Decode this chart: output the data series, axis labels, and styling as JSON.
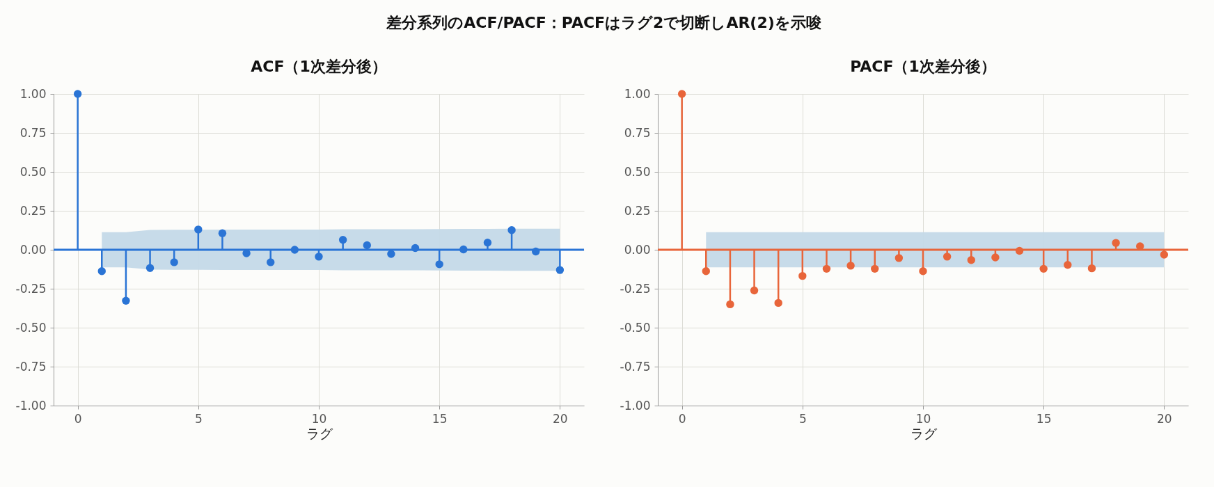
{
  "chart_data": [
    {
      "type": "lollipop",
      "title": "ACF（1次差分後）",
      "xlabel": "ラグ",
      "annotations": [
        "差分系列のACF/PACF：PACFはラグ2で切断しAR(2)を示唆"
      ],
      "x": [
        0,
        1,
        2,
        3,
        4,
        5,
        6,
        7,
        8,
        9,
        10,
        11,
        12,
        13,
        14,
        15,
        16,
        17,
        18,
        19,
        20
      ],
      "series": [
        {
          "color": "#2a74d5",
          "values": [
            1,
            -0.137,
            -0.327,
            -0.117,
            -0.08,
            0.13,
            0.106,
            -0.022,
            -0.08,
            0,
            -0.044,
            0.064,
            0.029,
            -0.027,
            0.011,
            -0.093,
            0.002,
            0.046,
            0.126,
            -0.011,
            -0.13
          ],
          "lower": [
            null,
            -0.113,
            -0.113,
            -0.127,
            -0.128,
            -0.128,
            -0.13,
            -0.13,
            -0.13,
            -0.13,
            -0.13,
            -0.132,
            -0.132,
            -0.132,
            -0.132,
            -0.133,
            -0.134,
            -0.134,
            -0.135,
            -0.135,
            -0.135
          ],
          "upper": [
            null,
            0.113,
            0.113,
            0.127,
            0.128,
            0.128,
            0.13,
            0.13,
            0.13,
            0.13,
            0.13,
            0.132,
            0.132,
            0.132,
            0.132,
            0.133,
            0.134,
            0.134,
            0.135,
            0.135,
            0.135
          ]
        }
      ],
      "xlim": [
        -1,
        21
      ],
      "xticks": [
        0,
        5,
        10,
        15,
        20
      ],
      "ylim": [
        -1,
        1
      ],
      "yticks": [
        {
          "value": -1,
          "label": "-1.00"
        },
        -0.75,
        {
          "value": -0.5,
          "label": "-0.50"
        },
        -0.25,
        {
          "value": 0,
          "label": "0.00"
        },
        0.25,
        {
          "value": 0.5,
          "label": "0.50"
        },
        0.75,
        {
          "value": 1,
          "label": "1.00"
        }
      ],
      "ref_lines": [
        {
          "axis": "y",
          "value": 0,
          "color": "#2a74d5"
        }
      ],
      "grid": true,
      "marker": "circle"
    },
    {
      "type": "lollipop",
      "title": "PACF（1次差分後）",
      "xlabel": "ラグ",
      "x": [
        0,
        1,
        2,
        3,
        4,
        5,
        6,
        7,
        8,
        9,
        10,
        11,
        12,
        13,
        14,
        15,
        16,
        17,
        18,
        19,
        20
      ],
      "series": [
        {
          "color": "#e8653a",
          "values": [
            1,
            -0.137,
            -0.35,
            -0.261,
            -0.341,
            -0.168,
            -0.122,
            -0.102,
            -0.122,
            -0.053,
            -0.137,
            -0.044,
            -0.066,
            -0.049,
            -0.007,
            -0.122,
            -0.097,
            -0.119,
            0.044,
            0.022,
            -0.031
          ],
          "lower": [
            null,
            -0.113,
            -0.113,
            -0.113,
            -0.113,
            -0.113,
            -0.113,
            -0.113,
            -0.113,
            -0.113,
            -0.113,
            -0.113,
            -0.113,
            -0.113,
            -0.113,
            -0.113,
            -0.113,
            -0.113,
            -0.113,
            -0.113,
            -0.113
          ],
          "upper": [
            null,
            0.113,
            0.113,
            0.113,
            0.113,
            0.113,
            0.113,
            0.113,
            0.113,
            0.113,
            0.113,
            0.113,
            0.113,
            0.113,
            0.113,
            0.113,
            0.113,
            0.113,
            0.113,
            0.113,
            0.113
          ]
        }
      ],
      "xlim": [
        -1,
        21
      ],
      "xticks": [
        0,
        5,
        10,
        15,
        20
      ],
      "ylim": [
        -1,
        1
      ],
      "yticks": [
        {
          "value": -1,
          "label": "-1.00"
        },
        -0.75,
        {
          "value": -0.5,
          "label": "-0.50"
        },
        -0.25,
        {
          "value": 0,
          "label": "0.00"
        },
        0.25,
        {
          "value": 0.5,
          "label": "0.50"
        },
        0.75,
        {
          "value": 1,
          "label": "1.00"
        }
      ],
      "ref_lines": [
        {
          "axis": "y",
          "value": 0,
          "color": "#e8653a"
        }
      ],
      "grid": true,
      "marker": "circle"
    }
  ]
}
